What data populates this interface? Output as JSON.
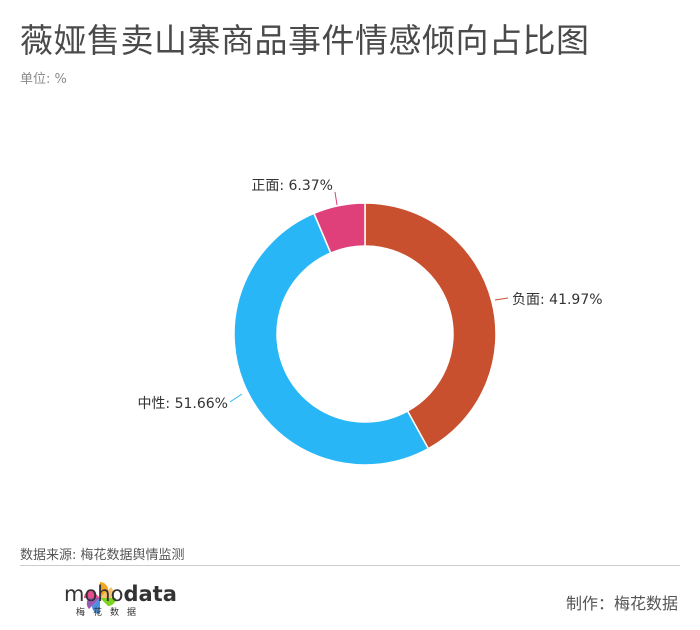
{
  "title": "薇娅售卖山寨商品事件情感倾向占比图",
  "unit_label": "单位: %",
  "source": "数据来源: 梅花数据舆情监测",
  "brand": {
    "prefix": "moho",
    "suffix": "data",
    "sub": "梅花数据",
    "icon": "pinwheel-logo-icon"
  },
  "maker": "制作：梅花数据",
  "colors": {
    "负面": "#c8502f",
    "中性": "#29b6f6",
    "正面": "#e0407a"
  },
  "chart_data": {
    "type": "pie",
    "donut": true,
    "title": "薇娅售卖山寨商品事件情感倾向占比图",
    "unit": "%",
    "legend": "none",
    "categories": [
      "负面",
      "中性",
      "正面"
    ],
    "values": [
      41.97,
      51.66,
      6.37
    ],
    "data_labels": [
      "负面: 41.97%",
      "中性: 51.66%",
      "正面: 6.37%"
    ]
  }
}
